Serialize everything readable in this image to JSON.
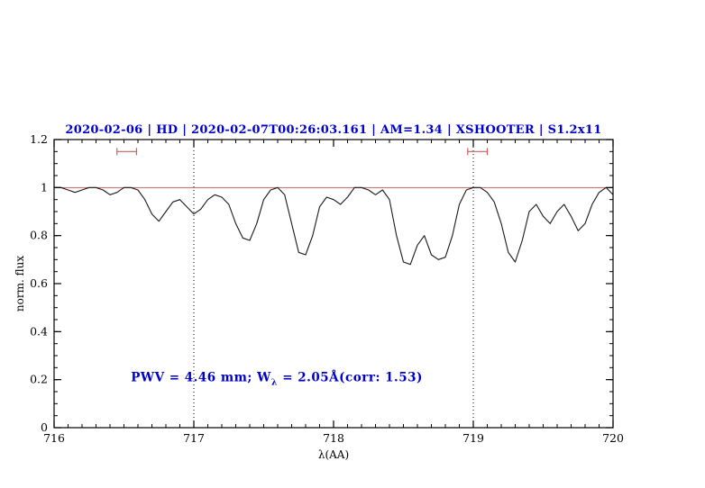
{
  "page": {
    "background": "#ffffff"
  },
  "chart_data": {
    "type": "line",
    "title": "2020-02-06 | HD | 2020-02-07T00:26:03.161 | AM=1.34 | XSHOOTER | S1.2x11",
    "title_color": "#0000cd",
    "xlabel": "λ(AA)",
    "ylabel": "norm. flux",
    "xlim": [
      716,
      720
    ],
    "ylim": [
      0,
      1.2
    ],
    "x_ticks": [
      716,
      717,
      718,
      719,
      720
    ],
    "x_tick_labels": [
      "716",
      "717",
      "718",
      "719",
      "720"
    ],
    "y_ticks": [
      0,
      0.2,
      0.4,
      0.6,
      0.8,
      1,
      1.2
    ],
    "y_tick_labels": [
      "0",
      "0.2",
      "0.4",
      "0.6",
      "0.8",
      "1",
      "1.2"
    ],
    "x_minor_step": 0.1,
    "y_minor_step": 0.05,
    "grid": false,
    "legend": "none",
    "reference_line": {
      "y": 1.0,
      "color": "#cc5f5f"
    },
    "dotted_vlines": [
      717,
      719
    ],
    "range_markers": [
      {
        "x_center": 716.52,
        "half_width": 0.07,
        "y": 1.15,
        "color": "#cc5f5f"
      },
      {
        "x_center": 719.03,
        "half_width": 0.07,
        "y": 1.15,
        "color": "#cc5f5f"
      }
    ],
    "annotation": {
      "prefix": "PWV = 4.46 mm; W",
      "subscript": "λ",
      "suffix": " = 2.05Å(corr: 1.53)",
      "x": 716.55,
      "y": 0.2,
      "color": "#0000cd"
    },
    "series": [
      {
        "name": "spectrum",
        "color": "#1a1a1a",
        "points": [
          [
            716.0,
            1.0
          ],
          [
            716.05,
            1.0
          ],
          [
            716.1,
            0.99
          ],
          [
            716.15,
            0.98
          ],
          [
            716.2,
            0.99
          ],
          [
            716.25,
            1.0
          ],
          [
            716.3,
            1.0
          ],
          [
            716.35,
            0.99
          ],
          [
            716.4,
            0.97
          ],
          [
            716.45,
            0.98
          ],
          [
            716.5,
            1.0
          ],
          [
            716.55,
            1.0
          ],
          [
            716.6,
            0.99
          ],
          [
            716.65,
            0.95
          ],
          [
            716.7,
            0.89
          ],
          [
            716.75,
            0.86
          ],
          [
            716.8,
            0.9
          ],
          [
            716.85,
            0.94
          ],
          [
            716.9,
            0.95
          ],
          [
            716.95,
            0.92
          ],
          [
            717.0,
            0.89
          ],
          [
            717.05,
            0.91
          ],
          [
            717.1,
            0.95
          ],
          [
            717.15,
            0.97
          ],
          [
            717.2,
            0.96
          ],
          [
            717.25,
            0.93
          ],
          [
            717.3,
            0.85
          ],
          [
            717.35,
            0.79
          ],
          [
            717.4,
            0.78
          ],
          [
            717.45,
            0.85
          ],
          [
            717.5,
            0.95
          ],
          [
            717.55,
            0.99
          ],
          [
            717.6,
            1.0
          ],
          [
            717.65,
            0.97
          ],
          [
            717.7,
            0.85
          ],
          [
            717.75,
            0.73
          ],
          [
            717.8,
            0.72
          ],
          [
            717.85,
            0.8
          ],
          [
            717.9,
            0.92
          ],
          [
            717.95,
            0.96
          ],
          [
            718.0,
            0.95
          ],
          [
            718.05,
            0.93
          ],
          [
            718.1,
            0.96
          ],
          [
            718.15,
            1.0
          ],
          [
            718.2,
            1.0
          ],
          [
            718.25,
            0.99
          ],
          [
            718.3,
            0.97
          ],
          [
            718.35,
            0.99
          ],
          [
            718.4,
            0.95
          ],
          [
            718.45,
            0.8
          ],
          [
            718.5,
            0.69
          ],
          [
            718.55,
            0.68
          ],
          [
            718.6,
            0.76
          ],
          [
            718.65,
            0.8
          ],
          [
            718.7,
            0.72
          ],
          [
            718.75,
            0.7
          ],
          [
            718.8,
            0.71
          ],
          [
            718.85,
            0.8
          ],
          [
            718.9,
            0.93
          ],
          [
            718.95,
            0.99
          ],
          [
            719.0,
            1.0
          ],
          [
            719.05,
            1.0
          ],
          [
            719.1,
            0.98
          ],
          [
            719.15,
            0.94
          ],
          [
            719.2,
            0.85
          ],
          [
            719.25,
            0.73
          ],
          [
            719.3,
            0.69
          ],
          [
            719.35,
            0.78
          ],
          [
            719.4,
            0.9
          ],
          [
            719.45,
            0.93
          ],
          [
            719.5,
            0.88
          ],
          [
            719.55,
            0.85
          ],
          [
            719.6,
            0.9
          ],
          [
            719.65,
            0.93
          ],
          [
            719.7,
            0.88
          ],
          [
            719.75,
            0.82
          ],
          [
            719.8,
            0.85
          ],
          [
            719.85,
            0.93
          ],
          [
            719.9,
            0.98
          ],
          [
            719.95,
            1.0
          ],
          [
            720.0,
            0.97
          ]
        ]
      }
    ]
  }
}
